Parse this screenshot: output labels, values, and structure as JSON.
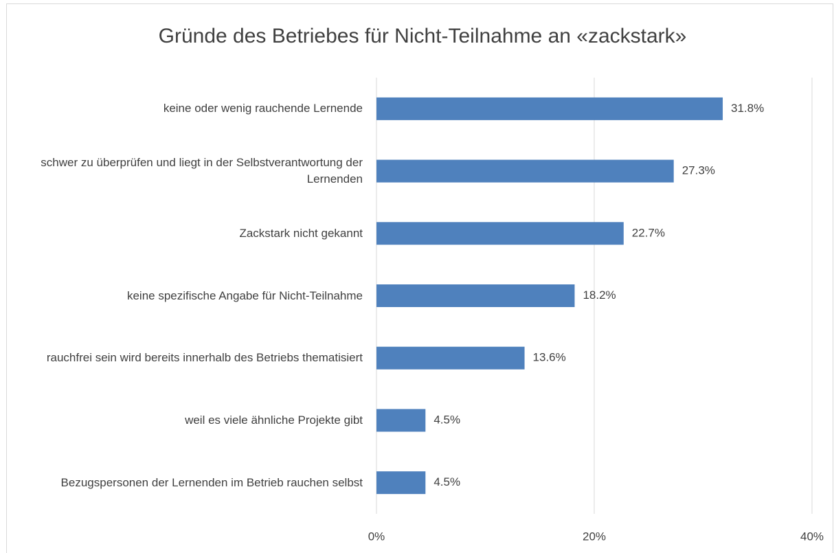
{
  "chart_data": {
    "type": "bar",
    "orientation": "horizontal",
    "title": "Gründe des Betriebes für Nicht-Teilnahme an «zackstark»",
    "categories": [
      "keine oder wenig rauchende Lernende",
      "schwer zu überprüfen und liegt in der Selbstverantwortung der Lernenden",
      "Zackstark nicht gekannt",
      "keine spezifische Angabe für Nicht-Teilnahme",
      "rauchfrei sein wird bereits innerhalb des Betriebs thematisiert",
      "weil es viele ähnliche Projekte gibt",
      "Bezugspersonen der Lernenden im Betrieb rauchen selbst"
    ],
    "values": [
      31.8,
      27.3,
      22.7,
      18.2,
      13.6,
      4.5,
      4.5
    ],
    "value_labels": [
      "31.8%",
      "27.3%",
      "22.7%",
      "18.2%",
      "13.6%",
      "4.5%",
      "4.5%"
    ],
    "color": "#4f81bd",
    "xlim": [
      0,
      40
    ],
    "xticks": [
      {
        "value": 0,
        "label": "0%"
      },
      {
        "value": 20,
        "label": "20%"
      },
      {
        "value": 40,
        "label": "40%"
      }
    ],
    "grid": true
  }
}
